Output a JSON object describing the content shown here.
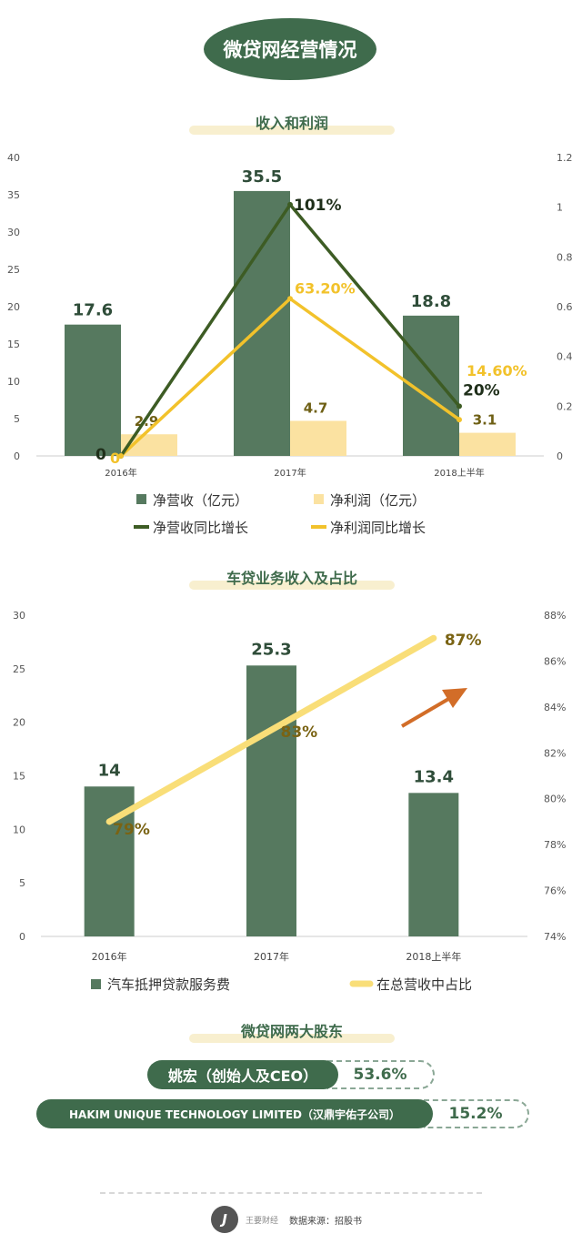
{
  "main_title": "微贷网经营情况",
  "section1_title": "收入和利润",
  "section2_title": "车贷业务收入及占比",
  "section3_title": "微贷网两大股东",
  "colors": {
    "green": "#56795f",
    "light_yellow": "#fbe2a1",
    "dark_green": "#3d5c24",
    "gold": "#f2c22b",
    "line_yellow": "#f9de78",
    "arrow": "#d26d28"
  },
  "chart_data": [
    {
      "type": "bar",
      "categories": [
        "2016年",
        "2017年",
        "2018上半年"
      ],
      "ylim": [
        0,
        40
      ],
      "yticks": [
        "0",
        "5",
        "10",
        "15",
        "20",
        "25",
        "30",
        "35",
        "40"
      ],
      "y2lim": [
        0,
        1.2
      ],
      "y2ticks": [
        "0",
        "0.2",
        "0.4",
        "0.6",
        "0.8",
        "1",
        "1.2"
      ],
      "series": [
        {
          "name": "净营收（亿元）",
          "kind": "bar",
          "values": [
            17.6,
            35.5,
            18.8
          ],
          "labels": [
            "17.6",
            "35.5",
            "18.8"
          ]
        },
        {
          "name": "净利润（亿元）",
          "kind": "bar",
          "values": [
            2.9,
            4.7,
            3.1
          ],
          "labels": [
            "2.9",
            "4.7",
            "3.1"
          ]
        },
        {
          "name": "净营收同比增长",
          "kind": "line",
          "axis": "right",
          "values": [
            0,
            1.01,
            0.2
          ],
          "labels": [
            "0",
            "101%",
            "20%"
          ]
        },
        {
          "name": "净利润同比增长",
          "kind": "line",
          "axis": "right",
          "values": [
            0,
            0.632,
            0.146
          ],
          "labels": [
            "0",
            "63.20%",
            "14.60%"
          ]
        }
      ],
      "legend": "bottom"
    },
    {
      "type": "bar",
      "categories": [
        "2016年",
        "2017年",
        "2018上半年"
      ],
      "ylim": [
        0,
        30
      ],
      "yticks": [
        "0",
        "5",
        "10",
        "15",
        "20",
        "25",
        "30"
      ],
      "y2lim": [
        0.74,
        0.88
      ],
      "y2ticks": [
        "74%",
        "76%",
        "78%",
        "80%",
        "82%",
        "84%",
        "86%",
        "88%"
      ],
      "series": [
        {
          "name": "汽车抵押贷款服务费",
          "kind": "bar",
          "values": [
            14,
            25.3,
            13.4
          ],
          "labels": [
            "14",
            "25.3",
            "13.4"
          ]
        },
        {
          "name": "在总营收中占比",
          "kind": "line",
          "axis": "right",
          "values": [
            0.79,
            0.83,
            0.87
          ],
          "labels": [
            "79%",
            "83%",
            "87%"
          ]
        }
      ],
      "legend": "bottom"
    }
  ],
  "shareholders": [
    {
      "name": "姚宏（创始人及CEO）",
      "pct": "53.6%"
    },
    {
      "name": "HAKIM UNIQUE TECHNOLOGY LIMITED（汉鼎宇佑子公司）",
      "pct": "15.2%"
    }
  ],
  "footer": {
    "logo_glyph": "J",
    "logo_text": "王要财经",
    "source": "数据来源：招股书"
  }
}
